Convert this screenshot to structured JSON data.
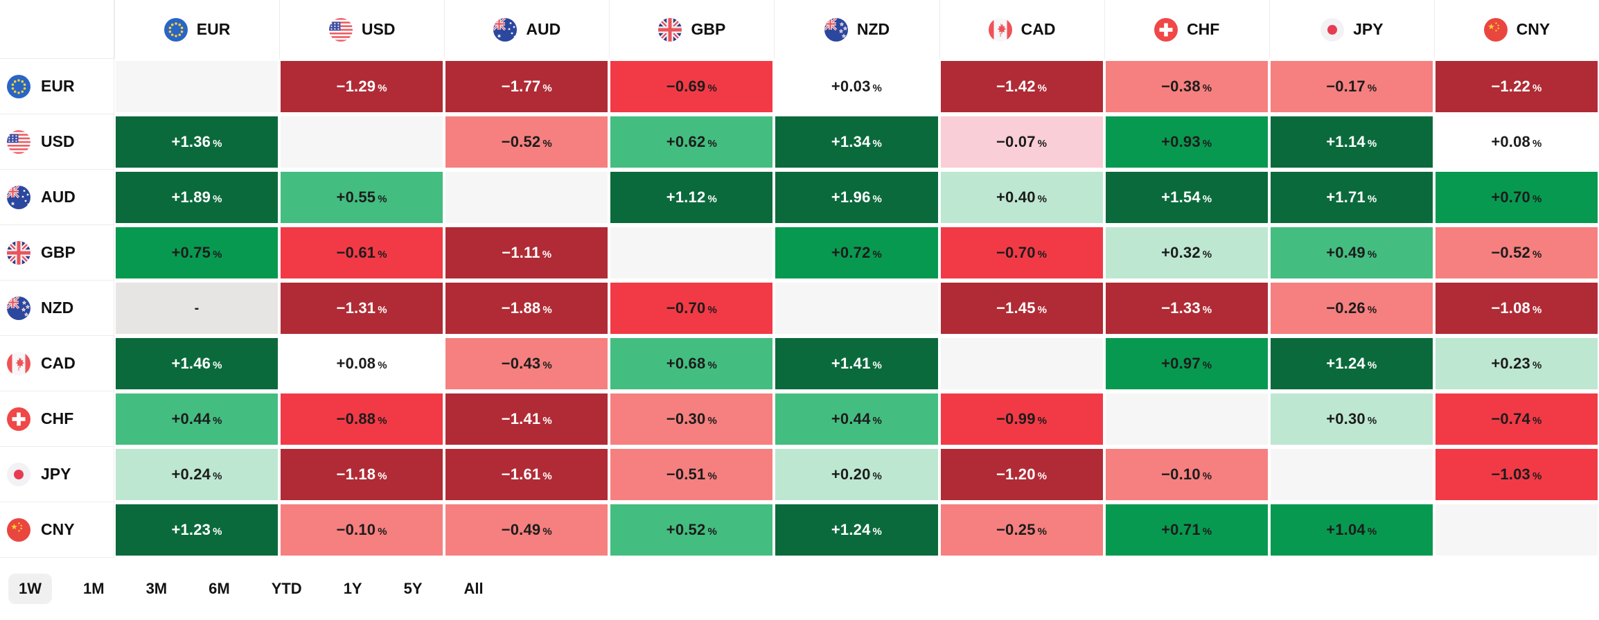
{
  "palette": {
    "dark_green": "#0b6a3c",
    "strong_green": "#089950",
    "mid_green": "#44bd80",
    "pale_green": "#bde7d1",
    "near_zero_positive": "#ffffff",
    "pale_pink": "#f9ced6",
    "salmon": "#f5807f",
    "bright_red": "#f23a46",
    "dark_red": "#b02b35",
    "self_cell_bg": "#f7f6f6",
    "na_cell_bg": "#e7e4e4",
    "text_dark": "#1c1c1c",
    "text_light": "#ffffff",
    "selected_timeframe_bg": "#f0f0f0",
    "grid_line": "#ececec"
  },
  "chart_data": {
    "type": "heatmap",
    "unit": "%",
    "columns": [
      "EUR",
      "USD",
      "AUD",
      "GBP",
      "NZD",
      "CAD",
      "CHF",
      "JPY",
      "CNY"
    ],
    "rows": [
      "EUR",
      "USD",
      "AUD",
      "GBP",
      "NZD",
      "CAD",
      "CHF",
      "JPY",
      "CNY"
    ],
    "na_text": "-",
    "values_pct": [
      [
        null,
        -1.29,
        -1.77,
        -0.69,
        0.03,
        -1.42,
        -0.38,
        -0.17,
        -1.22
      ],
      [
        1.36,
        null,
        -0.52,
        0.62,
        1.34,
        -0.07,
        0.93,
        1.14,
        0.08
      ],
      [
        1.89,
        0.55,
        null,
        1.12,
        1.96,
        0.4,
        1.54,
        1.71,
        0.7
      ],
      [
        0.75,
        -0.61,
        -1.11,
        null,
        0.72,
        -0.7,
        0.32,
        0.49,
        -0.52
      ],
      [
        "-",
        -1.31,
        -1.88,
        -0.7,
        null,
        -1.45,
        -1.33,
        -0.26,
        -1.08
      ],
      [
        1.46,
        0.08,
        -0.43,
        0.68,
        1.41,
        null,
        0.97,
        1.24,
        0.23
      ],
      [
        0.44,
        -0.88,
        -1.41,
        -0.3,
        0.44,
        -0.99,
        null,
        0.3,
        -0.74
      ],
      [
        0.24,
        -1.18,
        -1.61,
        -0.51,
        0.2,
        -1.2,
        -0.1,
        null,
        -1.03
      ],
      [
        1.23,
        -0.1,
        -0.49,
        0.52,
        1.24,
        -0.25,
        0.71,
        1.04,
        null
      ]
    ]
  },
  "flags": {
    "EUR": "eu-flag-icon",
    "USD": "us-flag-icon",
    "AUD": "au-flag-icon",
    "GBP": "gb-flag-icon",
    "NZD": "nz-flag-icon",
    "CAD": "ca-flag-icon",
    "CHF": "ch-flag-icon",
    "JPY": "jp-flag-icon",
    "CNY": "cn-flag-icon"
  },
  "timeframes": {
    "options": [
      "1W",
      "1M",
      "3M",
      "6M",
      "YTD",
      "1Y",
      "5Y",
      "All"
    ],
    "selected": "1W"
  }
}
